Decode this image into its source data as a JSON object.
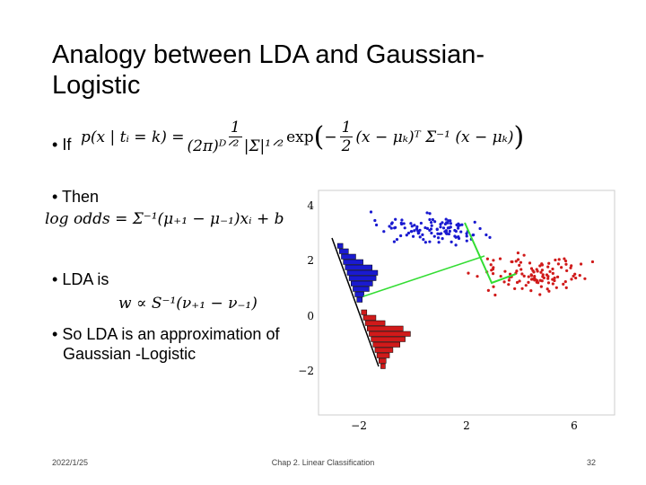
{
  "header": {
    "title": "Analogy between LDA and Gaussian-Logistic"
  },
  "bullets": [
    {
      "text": "If",
      "equation": {
        "lhs": "p(x | tᵢ = k) =",
        "num": "1",
        "den": "(2π)ᴰᐟ² |Σ|¹ᐟ²",
        "exp": "exp",
        "half_num": "1",
        "half_den": "2",
        "rest": "(x − μₖ)ᵀ Σ⁻¹ (x − μₖ)"
      }
    },
    {
      "text": "Then",
      "equation": "log odds = Σ⁻¹(μ₊₁ − μ₋₁)xᵢ + b"
    },
    {
      "text": "LDA is",
      "equation": "w ∝ S⁻¹(ν₊₁ − ν₋₁)"
    },
    {
      "text": "So LDA is an approximation of Gaussian -Logistic"
    }
  ],
  "figure": {
    "y_tick_labels": [
      "4",
      "2",
      "0",
      "−2"
    ],
    "x_tick_labels": [
      "−2",
      "2",
      "6"
    ]
  },
  "footer": {
    "date": "2022/1/25",
    "chapter": "Chap 2. Linear Classification",
    "page": "32"
  }
}
